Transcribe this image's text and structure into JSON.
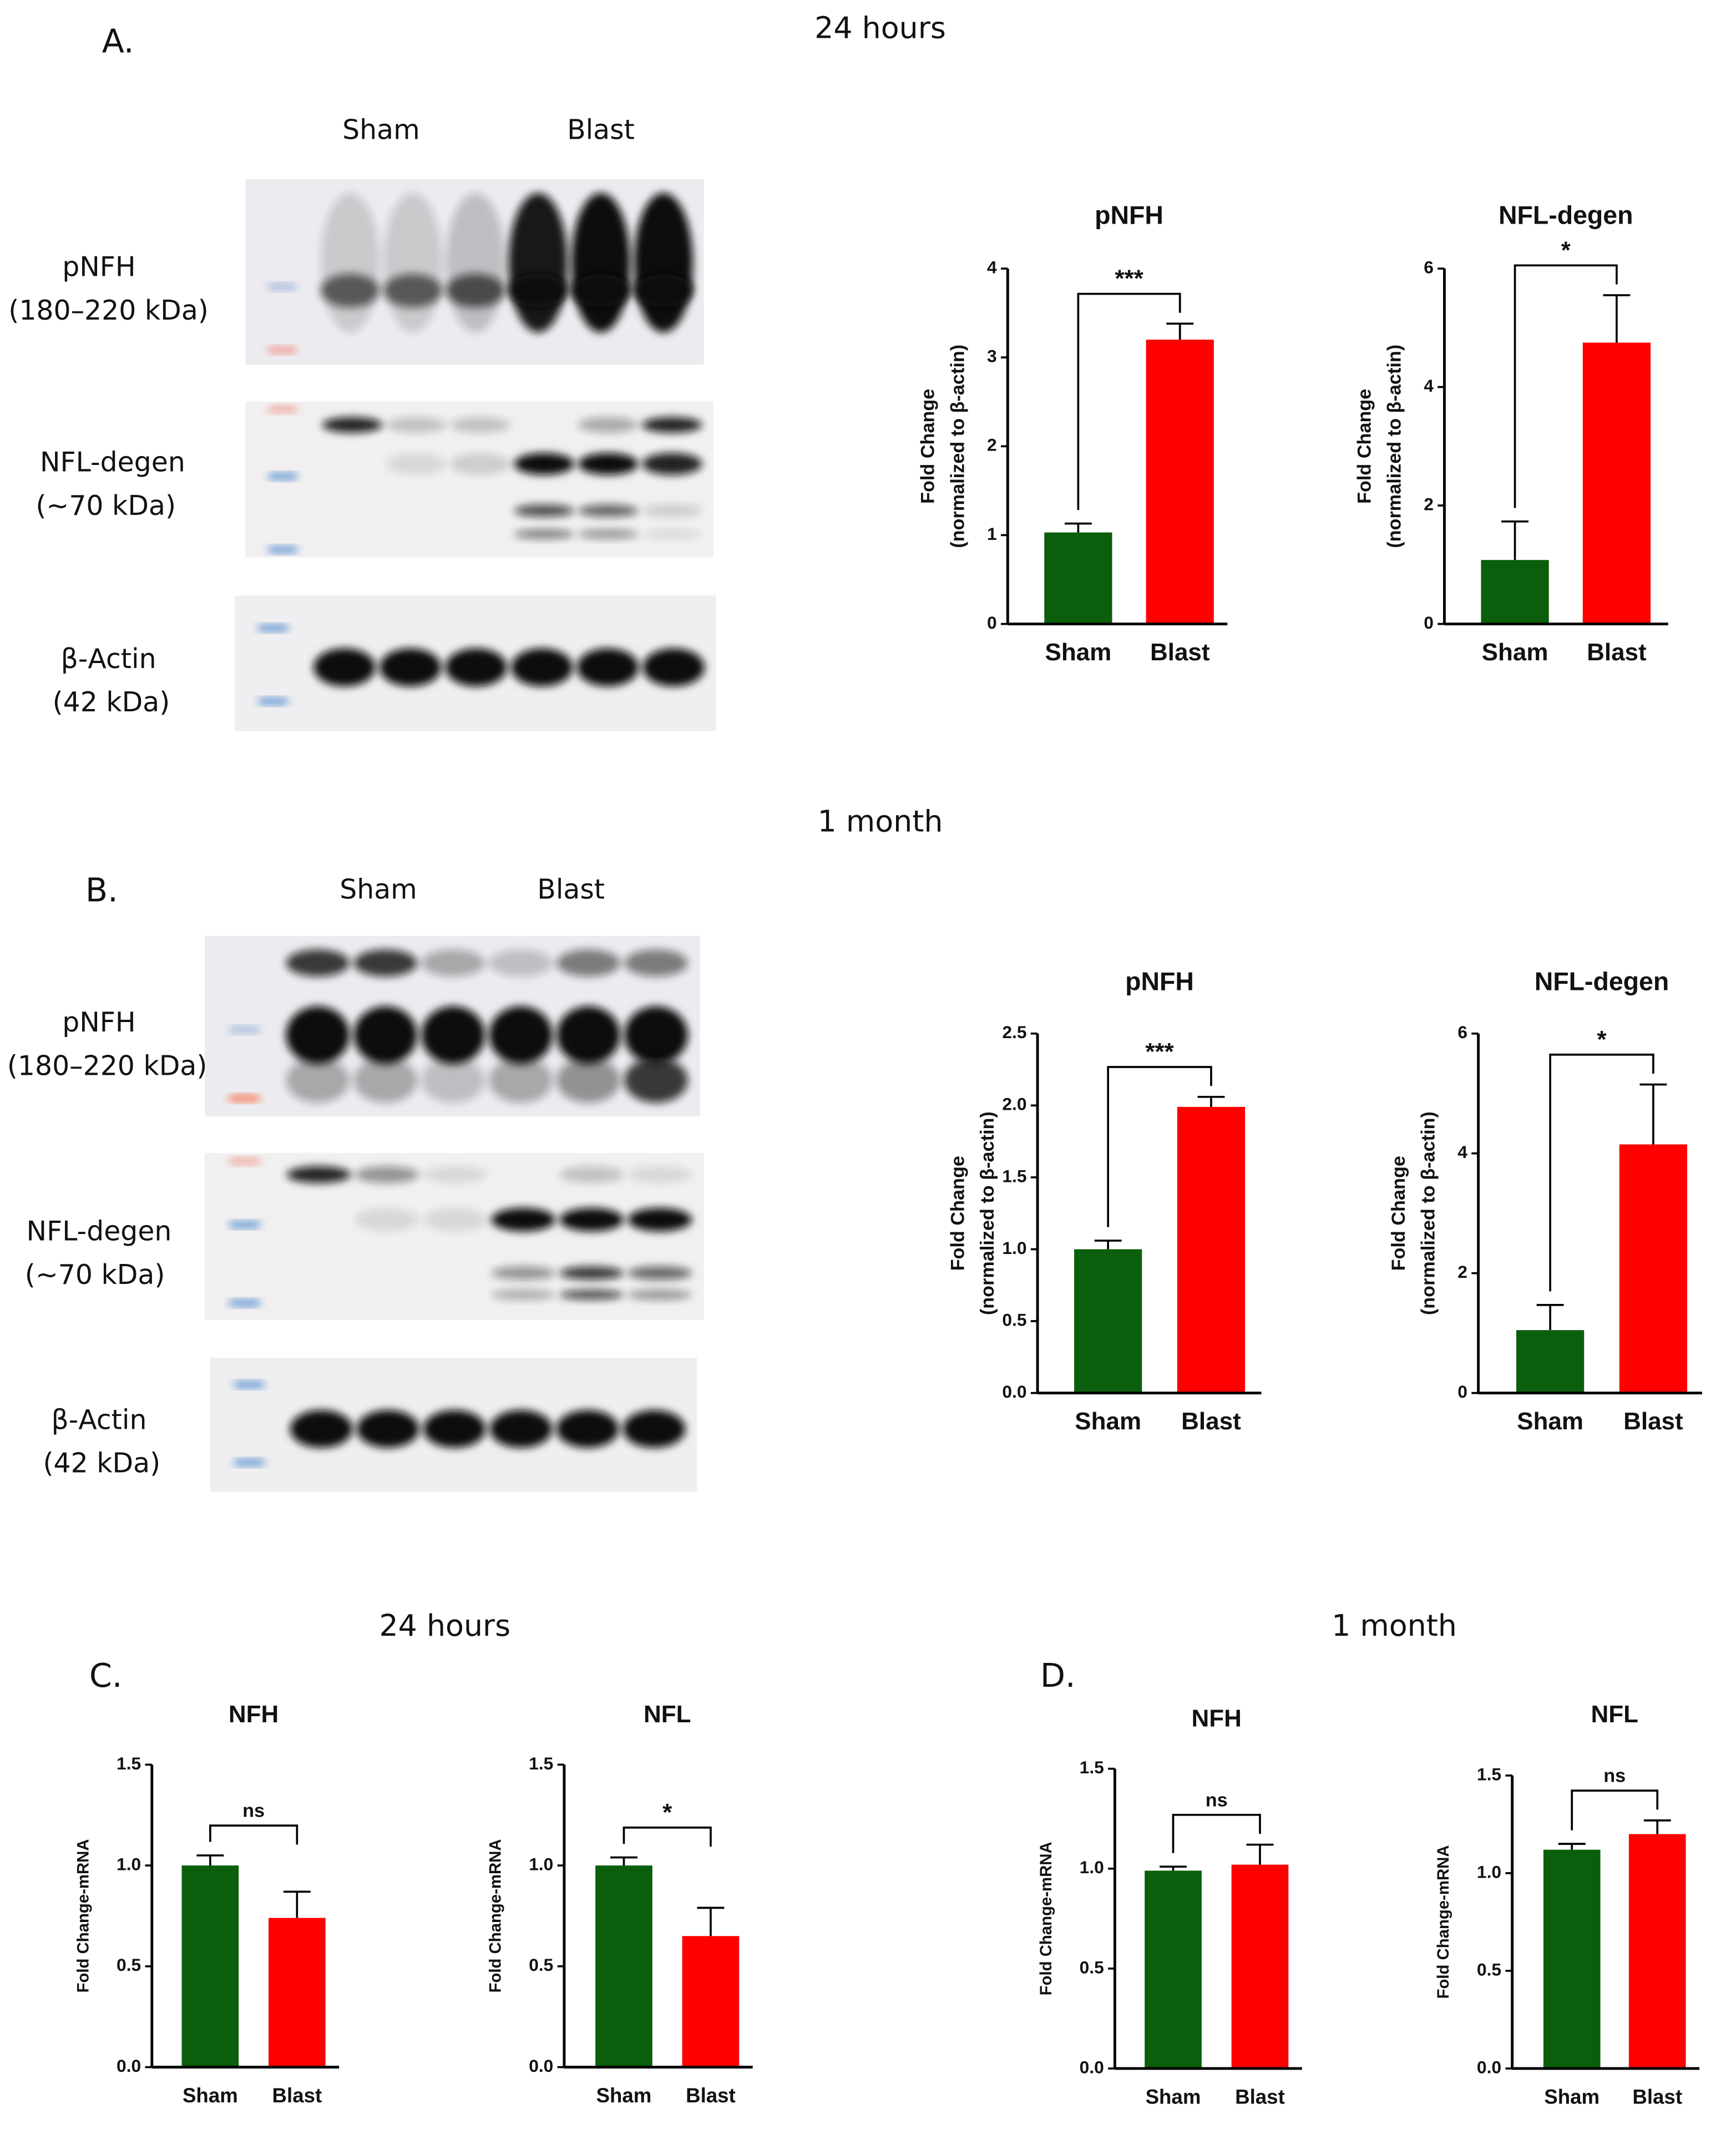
{
  "panels": [
    {
      "label": "A.",
      "title": "24 hours",
      "groups": [
        "Sham",
        "Blast"
      ],
      "blots": [
        {
          "protein": "pNFH",
          "size": "(180–220 kDa)"
        },
        {
          "protein": "NFL-degen",
          "size": "(~70 kDa)"
        },
        {
          "protein": "β-Actin",
          "size": "(42 kDa)"
        }
      ]
    },
    {
      "label": "B.",
      "title": "1 month",
      "groups": [
        "Sham",
        "Blast"
      ],
      "blots": [
        {
          "protein": "pNFH",
          "size": "(180–220 kDa)"
        },
        {
          "protein": "NFL-degen",
          "size": "(~70 kDa)"
        },
        {
          "protein": "β-Actin",
          "size": "(42 kDa)"
        }
      ]
    },
    {
      "label": "C.",
      "title": "24 hours"
    },
    {
      "label": "D.",
      "title": "1 month"
    }
  ],
  "chart_data": [
    {
      "type": "bar",
      "title": "pNFH",
      "y_label": [
        "Fold Change",
        "(normalized to β-actin)"
      ],
      "categories": [
        "Sham",
        "Blast"
      ],
      "values": [
        1.03,
        3.2
      ],
      "errors": [
        0.1,
        0.18
      ],
      "colors": [
        "#0b5e0b",
        "#ff0000"
      ],
      "significance": "***",
      "ylim": [
        0,
        4
      ],
      "yticks": [
        0,
        1,
        2,
        3,
        4
      ]
    },
    {
      "type": "bar",
      "title": "NFL-degen",
      "y_label": [
        "Fold Change",
        "(normalized to β-actin)"
      ],
      "categories": [
        "Sham",
        "Blast"
      ],
      "values": [
        1.08,
        4.75
      ],
      "errors": [
        0.65,
        0.8
      ],
      "colors": [
        "#0b5e0b",
        "#ff0000"
      ],
      "significance": "*",
      "ylim": [
        0,
        6
      ],
      "yticks": [
        0,
        2,
        4,
        6
      ]
    },
    {
      "type": "bar",
      "title": "pNFH",
      "y_label": [
        "Fold Change",
        "(normalized to β-actin)"
      ],
      "categories": [
        "Sham",
        "Blast"
      ],
      "values": [
        1.0,
        1.99
      ],
      "errors": [
        0.06,
        0.07
      ],
      "colors": [
        "#0b5e0b",
        "#ff0000"
      ],
      "significance": "***",
      "ylim": [
        0,
        2.5
      ],
      "yticks": [
        {
          "value": 0,
          "label": "0.0"
        },
        0.5,
        {
          "value": 1,
          "label": "1.0"
        },
        1.5,
        {
          "value": 2,
          "label": "2.0"
        },
        2.5
      ]
    },
    {
      "type": "bar",
      "title": "NFL-degen",
      "y_label": [
        "Fold Change",
        "(normalized to β-actin)"
      ],
      "categories": [
        "Sham",
        "Blast"
      ],
      "values": [
        1.05,
        4.15
      ],
      "errors": [
        0.42,
        1.0
      ],
      "colors": [
        "#0b5e0b",
        "#ff0000"
      ],
      "significance": "*",
      "ylim": [
        0,
        6
      ],
      "yticks": [
        0,
        2,
        4,
        6
      ]
    },
    {
      "type": "bar",
      "title": "NFH",
      "y_label": [
        "Fold Change-mRNA"
      ],
      "categories": [
        "Sham",
        "Blast"
      ],
      "values": [
        1.0,
        0.74
      ],
      "errors": [
        0.05,
        0.13
      ],
      "colors": [
        "#0b5e0b",
        "#ff0000"
      ],
      "significance": "ns",
      "ylim": [
        0,
        1.5
      ],
      "yticks": [
        {
          "value": 0,
          "label": "0.0"
        },
        0.5,
        {
          "value": 1,
          "label": "1.0"
        },
        1.5
      ]
    },
    {
      "type": "bar",
      "title": "NFL",
      "y_label": [
        "Fold Change-mRNA"
      ],
      "categories": [
        "Sham",
        "Blast"
      ],
      "values": [
        1.0,
        0.65
      ],
      "errors": [
        0.04,
        0.14
      ],
      "colors": [
        "#0b5e0b",
        "#ff0000"
      ],
      "significance": "*",
      "ylim": [
        0,
        1.5
      ],
      "yticks": [
        {
          "value": 0,
          "label": "0.0"
        },
        0.5,
        {
          "value": 1,
          "label": "1.0"
        },
        1.5
      ]
    },
    {
      "type": "bar",
      "title": "NFH",
      "y_label": [
        "Fold Change-mRNA"
      ],
      "categories": [
        "Sham",
        "Blast"
      ],
      "values": [
        0.99,
        1.02
      ],
      "errors": [
        0.02,
        0.1
      ],
      "colors": [
        "#0b5e0b",
        "#ff0000"
      ],
      "significance": "ns",
      "ylim": [
        0,
        1.5
      ],
      "yticks": [
        {
          "value": 0,
          "label": "0.0"
        },
        0.5,
        {
          "value": 1,
          "label": "1.0"
        },
        1.5
      ]
    },
    {
      "type": "bar",
      "title": "NFL",
      "y_label": [
        "Fold Change-mRNA"
      ],
      "categories": [
        "Sham",
        "Blast"
      ],
      "values": [
        1.12,
        1.2
      ],
      "errors": [
        0.03,
        0.07
      ],
      "colors": [
        "#0b5e0b",
        "#ff0000"
      ],
      "significance": "ns",
      "ylim": [
        0,
        1.5
      ],
      "yticks": [
        {
          "value": 0,
          "label": "0.0"
        },
        0.5,
        {
          "value": 1,
          "label": "1.0"
        },
        1.5
      ]
    }
  ]
}
